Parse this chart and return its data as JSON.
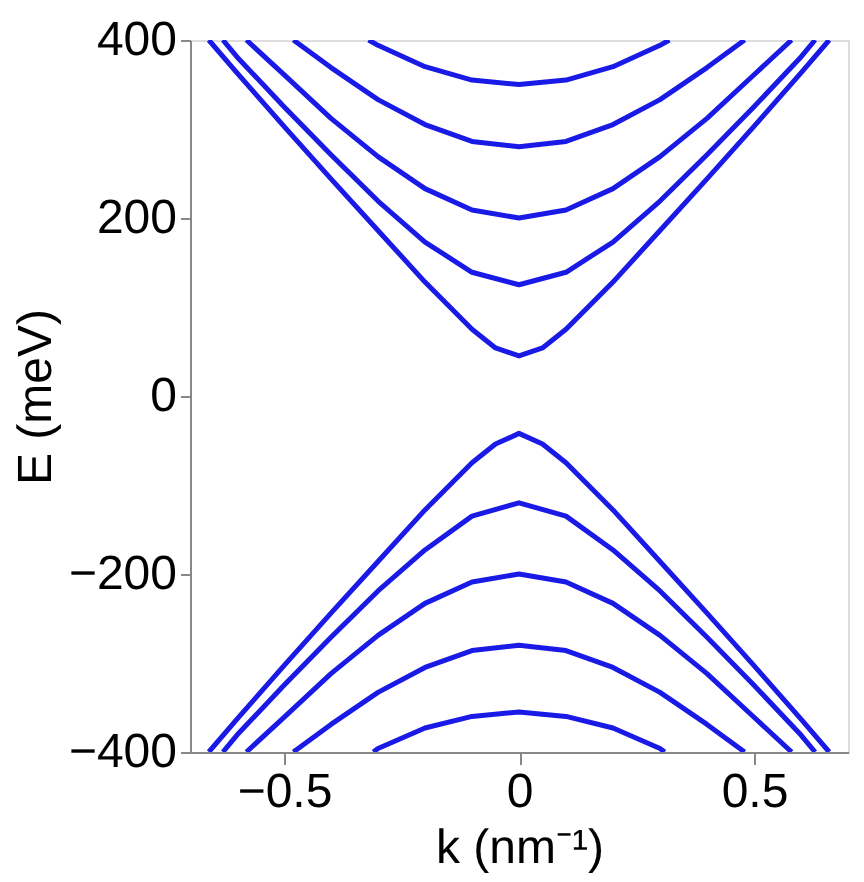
{
  "chart_data": {
    "type": "line",
    "xlabel": "k (nm⁻¹)",
    "ylabel": "E (meV)",
    "xlim": [
      -0.7,
      0.7
    ],
    "xticks": [
      -0.5,
      0,
      0.5
    ],
    "ylim": [
      -400,
      400
    ],
    "yticks": [
      -400,
      -200,
      0,
      200,
      400
    ],
    "grid": false,
    "legend": false,
    "marker": "none",
    "line_style": "solid",
    "series": [
      {
        "color": "#1a1ae6",
        "x": [
          -0.66,
          -0.6,
          -0.5,
          -0.4,
          -0.3,
          -0.2,
          -0.1,
          -0.05,
          0,
          0.05,
          0.1,
          0.2,
          0.3,
          0.4,
          0.5,
          0.6,
          0.66
        ],
        "values": [
          400,
          363,
          303,
          244,
          186,
          128,
          75,
          54,
          45,
          54,
          75,
          128,
          186,
          244,
          303,
          363,
          400
        ]
      },
      {
        "color": "#1a1ae6",
        "x": [
          -0.63,
          -0.6,
          -0.5,
          -0.4,
          -0.3,
          -0.2,
          -0.1,
          0,
          0.1,
          0.2,
          0.3,
          0.4,
          0.5,
          0.6,
          0.63
        ],
        "values": [
          400,
          381,
          325,
          271,
          219,
          173,
          139,
          125,
          139,
          173,
          219,
          271,
          325,
          381,
          400
        ]
      },
      {
        "color": "#1a1ae6",
        "x": [
          -0.58,
          -0.5,
          -0.4,
          -0.3,
          -0.2,
          -0.1,
          0,
          0.1,
          0.2,
          0.3,
          0.4,
          0.5,
          0.58
        ],
        "values": [
          400,
          361,
          312,
          269,
          233,
          209,
          200,
          209,
          233,
          269,
          312,
          361,
          400
        ]
      },
      {
        "color": "#1a1ae6",
        "x": [
          -0.48,
          -0.4,
          -0.3,
          -0.2,
          -0.1,
          0,
          0.1,
          0.2,
          0.3,
          0.4,
          0.48
        ],
        "values": [
          400,
          369,
          333,
          305,
          286,
          280,
          286,
          305,
          333,
          369,
          400
        ]
      },
      {
        "color": "#1a1ae6",
        "x": [
          -0.32,
          -0.3,
          -0.2,
          -0.1,
          0,
          0.1,
          0.2,
          0.3,
          0.32
        ],
        "values": [
          400,
          394,
          370,
          355,
          350,
          355,
          370,
          394,
          400
        ]
      },
      {
        "color": "#1a1ae6",
        "x": [
          -0.66,
          -0.6,
          -0.5,
          -0.4,
          -0.3,
          -0.2,
          -0.1,
          -0.05,
          0,
          0.05,
          0.1,
          0.2,
          0.3,
          0.4,
          0.5,
          0.6,
          0.66
        ],
        "values": [
          -400,
          -363,
          -303,
          -244,
          -186,
          -128,
          -75,
          -54,
          -42,
          -54,
          -75,
          -128,
          -186,
          -244,
          -303,
          -363,
          -400
        ]
      },
      {
        "color": "#1a1ae6",
        "x": [
          -0.63,
          -0.6,
          -0.5,
          -0.4,
          -0.3,
          -0.2,
          -0.1,
          0,
          0.1,
          0.2,
          0.3,
          0.4,
          0.5,
          0.6,
          0.63
        ],
        "values": [
          -400,
          -381,
          -325,
          -271,
          -219,
          -173,
          -135,
          -120,
          -135,
          -173,
          -219,
          -271,
          -325,
          -381,
          -400
        ]
      },
      {
        "color": "#1a1ae6",
        "x": [
          -0.58,
          -0.5,
          -0.4,
          -0.3,
          -0.2,
          -0.1,
          0,
          0.1,
          0.2,
          0.3,
          0.4,
          0.5,
          0.58
        ],
        "values": [
          -400,
          -361,
          -312,
          -269,
          -233,
          -209,
          -200,
          -209,
          -233,
          -269,
          -312,
          -361,
          -400
        ]
      },
      {
        "color": "#1a1ae6",
        "x": [
          -0.48,
          -0.4,
          -0.3,
          -0.2,
          -0.1,
          0,
          0.1,
          0.2,
          0.3,
          0.4,
          0.48
        ],
        "values": [
          -400,
          -369,
          -333,
          -305,
          -286,
          -280,
          -286,
          -305,
          -333,
          -369,
          -400
        ]
      },
      {
        "color": "#1a1ae6",
        "x": [
          -0.31,
          -0.3,
          -0.2,
          -0.1,
          0,
          0.1,
          0.2,
          0.3,
          0.31
        ],
        "values": [
          -400,
          -396,
          -373,
          -360,
          -355,
          -360,
          -373,
          -396,
          -400
        ]
      }
    ]
  }
}
